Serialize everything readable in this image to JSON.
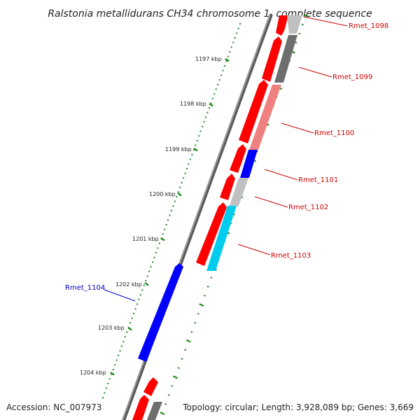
{
  "title": "Ralstonia metallidurans CH34 chromosome 1, complete sequence",
  "footer": {
    "accession": "Accession: NC_007973",
    "summary": "Topology: circular; Length: 3,928,089 bp; Genes: 3,669"
  },
  "kbp_labels": [
    "1197 kbp",
    "1198 kbp",
    "1199 kbp",
    "1200 kbp",
    "1201 kbp",
    "1202 kbp",
    "1203 kbp",
    "1204 kbp"
  ],
  "genes": {
    "Rmet_1098": "Rmet_1098",
    "Rmet_1099": "Rmet_1099",
    "Rmet_1100": "Rmet_1100",
    "Rmet_1101": "Rmet_1101",
    "Rmet_1102": "Rmet_1102",
    "Rmet_1103": "Rmet_1103",
    "Rmet_1104": "Rmet_1104"
  },
  "colors": {
    "cds_red": "#ff0000",
    "cds_blue": "#0000ff",
    "cds_cyan": "#00ccee",
    "gray_light": "#c0c0c0",
    "gray_dark": "#6e6e6e",
    "pink": "#f08080",
    "tick_green": "#228b22",
    "backbone": "#808080",
    "label_red": "#cc0000",
    "label_blue": "#0000cc"
  }
}
